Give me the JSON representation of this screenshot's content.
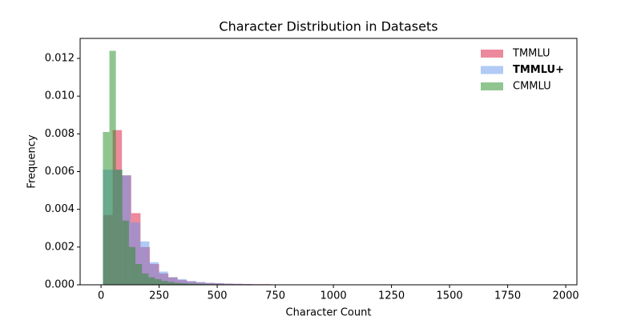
{
  "chart_data": {
    "type": "histogram",
    "title": "Character Distribution in Datasets",
    "x_label": "Character Count",
    "y_label": "Frequency",
    "xlim": [
      -90,
      2048
    ],
    "ylim": [
      0,
      0.01306
    ],
    "xticks": [
      0,
      250,
      500,
      750,
      1000,
      1250,
      1500,
      1750,
      2000
    ],
    "yticks": [
      {
        "value": 0,
        "label": "0.000"
      },
      0.002,
      0.004,
      0.006,
      0.008,
      {
        "value": 0.01,
        "label": "0.010"
      },
      0.012
    ],
    "legend": "upper right",
    "alpha": 0.5,
    "series": [
      {
        "name": "TMMLU",
        "color": "#dc143c",
        "bold": false,
        "bins": [
          10,
          50,
          90,
          130,
          170,
          210,
          250,
          290,
          330,
          370,
          410,
          450,
          490,
          530,
          570,
          610,
          650,
          690,
          730,
          770,
          810,
          850,
          890,
          930,
          970,
          1010,
          1050,
          1090,
          1130,
          1170,
          1210,
          1250,
          1290,
          1330,
          1370,
          1410,
          1450,
          1490,
          1530,
          1570,
          1610,
          1650,
          1690,
          1730,
          1770,
          1810,
          1850,
          1890,
          1930,
          1970
        ],
        "values": [
          0.0037,
          0.0082,
          0.0058,
          0.0038,
          0.002,
          0.0011,
          0.0006,
          0.0004,
          0.00025,
          0.00018,
          0.00012,
          0.0001,
          8e-05,
          6e-05,
          5e-05,
          4e-05,
          3e-05,
          3e-05,
          2e-05,
          2e-05,
          1e-05,
          1e-05,
          1e-05,
          1e-05,
          1e-05,
          1e-05,
          1e-05,
          1e-05,
          1e-05,
          1e-05,
          5e-06,
          5e-06,
          5e-06,
          5e-06,
          5e-06,
          5e-06,
          5e-06,
          5e-06,
          5e-06,
          5e-06,
          5e-06,
          5e-06,
          5e-06,
          5e-06,
          5e-06,
          5e-06,
          5e-06,
          5e-06,
          5e-06
        ]
      },
      {
        "name": "TMMLU+",
        "color": "#6495ed",
        "bold": true,
        "bins": [
          8,
          48,
          88,
          128,
          168,
          208,
          248,
          288,
          328,
          368,
          408,
          448,
          488,
          528,
          568,
          608,
          648,
          688,
          728,
          768,
          808,
          848,
          888,
          928,
          968,
          1008,
          1048
        ],
        "values": [
          0.0061,
          0.0061,
          0.0058,
          0.0033,
          0.0023,
          0.0012,
          0.0007,
          0.0004,
          0.0003,
          0.0002,
          0.00015,
          0.0001,
          8e-05,
          6e-05,
          5e-05,
          4e-05,
          3e-05,
          3e-05,
          2e-05,
          2e-05,
          1e-05,
          1e-05,
          1e-05,
          1e-05,
          5e-06,
          5e-06
        ]
      },
      {
        "name": "CMMLU",
        "color": "#228b22",
        "bold": false,
        "bins": [
          8,
          36,
          64,
          92,
          120,
          148,
          176,
          204,
          232,
          260,
          288,
          316,
          344,
          372,
          400,
          428,
          456,
          484,
          512,
          540,
          568,
          596,
          624,
          652,
          680,
          708,
          736,
          764,
          792
        ],
        "values": [
          0.0081,
          0.0124,
          0.0061,
          0.0034,
          0.002,
          0.0011,
          0.0006,
          0.0004,
          0.0003,
          0.0002,
          0.00015,
          0.0001,
          8e-05,
          6e-05,
          5e-05,
          4e-05,
          3e-05,
          3e-05,
          2e-05,
          2e-05,
          2e-05,
          1e-05,
          1e-05,
          1e-05,
          1e-05,
          1e-05,
          5e-06,
          5e-06
        ]
      }
    ]
  }
}
